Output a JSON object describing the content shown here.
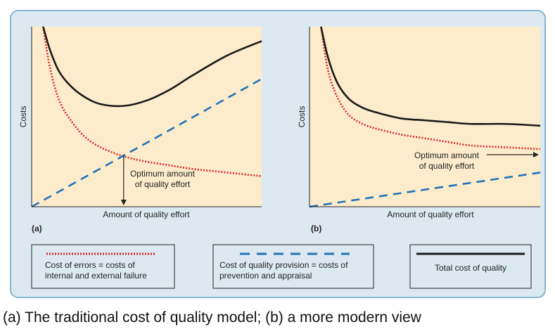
{
  "caption": "(a) The traditional cost of quality model; (b) a more modern view",
  "colors": {
    "panel_bg": "#dde9f1",
    "panel_border": "#86b6d2",
    "plot_bg": "#fdeccb",
    "errors_line": "#d8282b",
    "provision_line": "#1f73b9",
    "total_line": "#1a1a1a"
  },
  "legend": {
    "errors": "Cost of errors = costs of internal and external failure",
    "errors_lines": [
      "Cost of errors = costs of",
      "internal and external failure"
    ],
    "provision": "Cost of quality provision = costs of prevention and appraisal",
    "provision_lines": [
      "Cost of quality provision = costs of",
      "prevention and appraisal"
    ],
    "total": "Total cost of quality"
  },
  "chart_data": [
    {
      "type": "line",
      "panel_label": "(a)",
      "xlabel": "Amount of quality effort",
      "ylabel": "Costs",
      "xlim": [
        0,
        10
      ],
      "ylim": [
        0,
        10
      ],
      "annotation": {
        "lines": [
          "Optimum amount",
          "of quality effort"
        ],
        "arrow": "down",
        "x": 4.0
      },
      "series": [
        {
          "name": "Cost of errors = costs of internal and external failure",
          "style": "dotted",
          "x": [
            0.5,
            0.8,
            1.2,
            1.7,
            2.3,
            3.0,
            4.0,
            5.0,
            6.0,
            7.0,
            8.5,
            10.0
          ],
          "y": [
            10.0,
            7.7,
            5.9,
            4.8,
            3.9,
            3.3,
            2.8,
            2.5,
            2.3,
            2.1,
            1.9,
            1.7
          ]
        },
        {
          "name": "Cost of quality provision = costs of prevention and appraisal",
          "style": "dashed",
          "x": [
            0,
            10
          ],
          "y": [
            0,
            7.1
          ]
        },
        {
          "name": "Total cost of quality",
          "style": "solid",
          "x": [
            0.5,
            0.8,
            1.2,
            1.7,
            2.3,
            3.0,
            4.0,
            5.0,
            6.0,
            7.0,
            8.5,
            10.0
          ],
          "y": [
            10.0,
            8.7,
            7.5,
            6.7,
            6.1,
            5.7,
            5.6,
            5.9,
            6.5,
            7.3,
            8.4,
            9.2
          ]
        }
      ]
    },
    {
      "type": "line",
      "panel_label": "(b)",
      "xlabel": "Amount of quality effort",
      "ylabel": "Costs",
      "xlim": [
        0,
        10
      ],
      "ylim": [
        0,
        10
      ],
      "annotation": {
        "lines": [
          "Optimum amount",
          "of quality effort"
        ],
        "arrow": "right"
      },
      "series": [
        {
          "name": "Cost of errors = costs of internal and external failure",
          "style": "dotted",
          "x": [
            0.5,
            0.8,
            1.2,
            1.7,
            2.3,
            3.0,
            4.0,
            5.0,
            6.0,
            7.0,
            8.5,
            10.0
          ],
          "y": [
            10.0,
            7.6,
            6.1,
            5.1,
            4.6,
            4.3,
            4.0,
            3.8,
            3.6,
            3.4,
            3.3,
            3.2
          ]
        },
        {
          "name": "Cost of quality provision = costs of prevention and appraisal",
          "style": "dashed",
          "x": [
            0,
            10
          ],
          "y": [
            0,
            1.9
          ]
        },
        {
          "name": "Total cost of quality",
          "style": "solid",
          "x": [
            0.5,
            0.8,
            1.2,
            1.7,
            2.3,
            3.0,
            4.0,
            5.0,
            6.0,
            7.0,
            8.5,
            10.0
          ],
          "y": [
            10.0,
            8.3,
            6.9,
            6.0,
            5.5,
            5.2,
            4.9,
            4.8,
            4.7,
            4.6,
            4.6,
            4.5
          ]
        }
      ]
    }
  ]
}
